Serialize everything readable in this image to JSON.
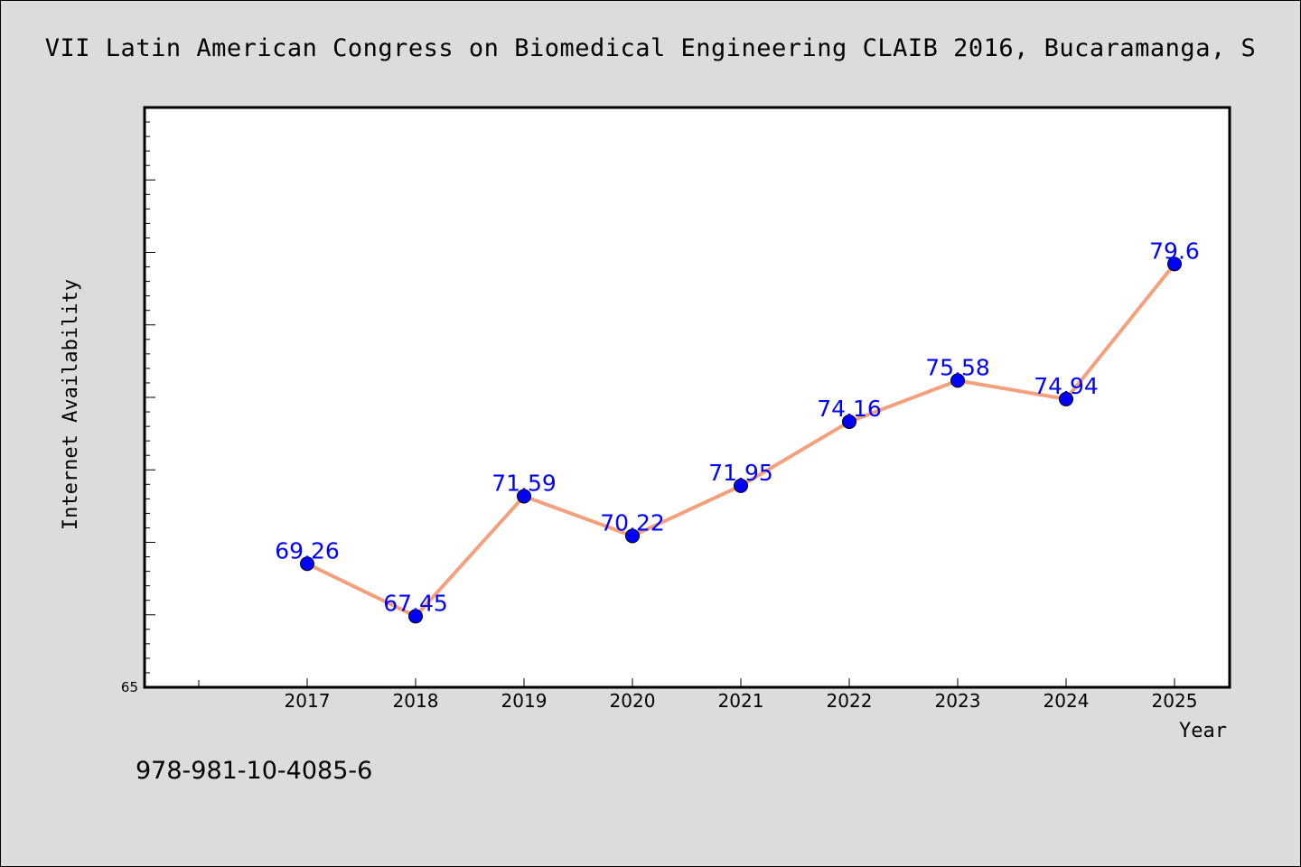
{
  "chart_data": {
    "type": "line",
    "title": "VII Latin American Congress on Biomedical Engineering CLAIB 2016, Bucaramanga, S",
    "xlabel": "Year",
    "ylabel": "Internet Availability",
    "categories": [
      "2017",
      "2018",
      "2019",
      "2020",
      "2021",
      "2022",
      "2023",
      "2024",
      "2025"
    ],
    "series": [
      {
        "values": [
          69.26,
          67.45,
          71.59,
          70.22,
          71.95,
          74.16,
          75.58,
          74.94,
          79.6
        ],
        "labels": [
          "69.26",
          "67.45",
          "71.59",
          "70.22",
          "71.95",
          "74.16",
          "75.58",
          "74.94",
          "79.6"
        ]
      }
    ],
    "ylim": [
      65,
      85
    ],
    "y_tick_labels": [
      "65"
    ],
    "grid": false,
    "line_color": "#f4a07c",
    "marker_color": "#0000ff",
    "label_color": "#0000ff"
  },
  "footer_text": "978-981-10-4085-6"
}
